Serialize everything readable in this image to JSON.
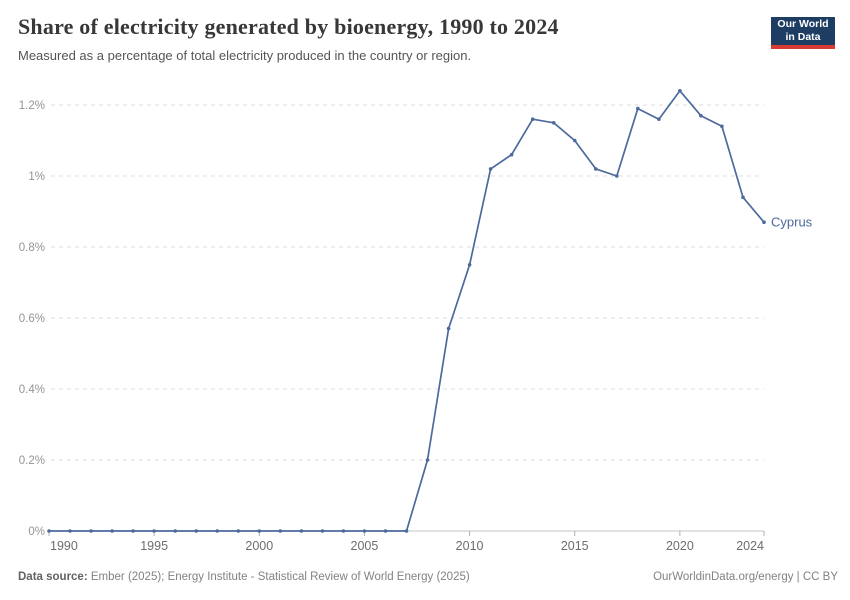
{
  "header": {
    "title": "Share of electricity generated by bioenergy, 1990 to 2024",
    "subtitle": "Measured as a percentage of total electricity produced in the country or region.",
    "logo": {
      "line1": "Our World",
      "line2": "in Data",
      "bg_color": "#1d3d63",
      "accent_color": "#d73b31"
    }
  },
  "chart_data": {
    "type": "line",
    "title": "Share of electricity generated by bioenergy, 1990 to 2024",
    "xlabel": "",
    "ylabel": "",
    "xlim": [
      1990,
      2024
    ],
    "ylim": [
      0,
      1.2
    ],
    "grid": "horizontal-dashed",
    "legend_position": "end-of-line",
    "marker": "dot",
    "x": [
      1990,
      1991,
      1992,
      1993,
      1994,
      1995,
      1996,
      1997,
      1998,
      1999,
      2000,
      2001,
      2002,
      2003,
      2004,
      2005,
      2006,
      2007,
      2008,
      2009,
      2010,
      2011,
      2012,
      2013,
      2014,
      2015,
      2016,
      2017,
      2018,
      2019,
      2020,
      2021,
      2022,
      2023,
      2024
    ],
    "series": [
      {
        "name": "Cyprus",
        "color": "#4c6a9c",
        "values": [
          0,
          0,
          0,
          0,
          0,
          0,
          0,
          0,
          0,
          0,
          0,
          0,
          0,
          0,
          0,
          0,
          0,
          0,
          0.2,
          0.57,
          0.75,
          1.02,
          1.06,
          1.16,
          1.15,
          1.1,
          1.02,
          1.0,
          1.19,
          1.16,
          1.24,
          1.17,
          1.14,
          0.94,
          0.87
        ]
      }
    ],
    "y_ticks": [
      {
        "value": 0,
        "label": "0%"
      },
      {
        "value": 0.2,
        "label": "0.2%"
      },
      {
        "value": 0.4,
        "label": "0.4%"
      },
      {
        "value": 0.6,
        "label": "0.6%"
      },
      {
        "value": 0.8,
        "label": "0.8%"
      },
      {
        "value": 1.0,
        "label": "1%"
      },
      {
        "value": 1.2,
        "label": "1.2%"
      }
    ],
    "x_ticks": [
      {
        "value": 1990,
        "label": "1990"
      },
      {
        "value": 1995,
        "label": "1995"
      },
      {
        "value": 2000,
        "label": "2000"
      },
      {
        "value": 2005,
        "label": "2005"
      },
      {
        "value": 2010,
        "label": "2010"
      },
      {
        "value": 2015,
        "label": "2015"
      },
      {
        "value": 2020,
        "label": "2020"
      },
      {
        "value": 2024,
        "label": "2024"
      }
    ],
    "colors": {
      "line": "#4c6a9c",
      "gridline": "#dcdcdc",
      "axis": "#c4c4c4",
      "tick": "#b0b0b0"
    }
  },
  "footer": {
    "source_label": "Data source:",
    "source_text": "Ember (2025); Energy Institute - Statistical Review of World Energy (2025)",
    "credit": "OurWorldinData.org/energy | CC BY"
  }
}
